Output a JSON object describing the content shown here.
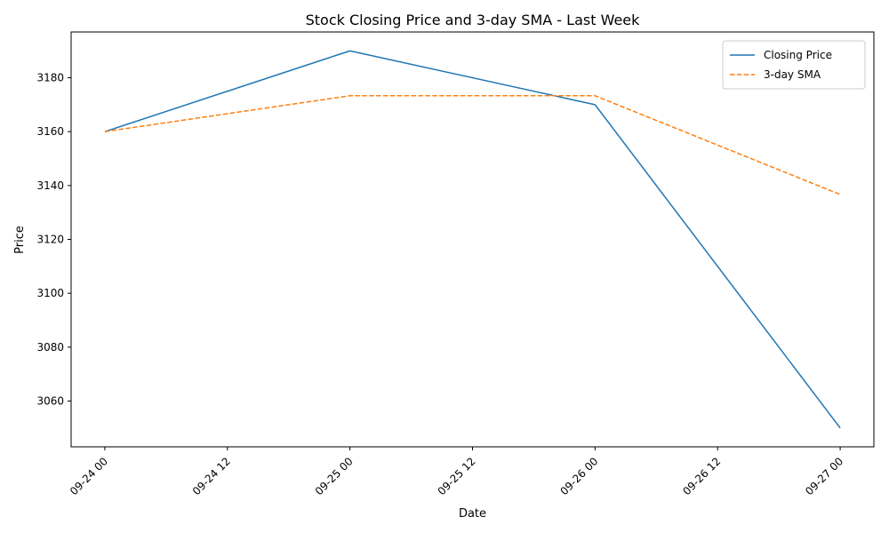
{
  "chart_data": {
    "type": "line",
    "title": "Stock Closing Price and 3-day SMA - Last Week",
    "xlabel": "Date",
    "ylabel": "Price",
    "x": [
      "2023-09-24 00:00",
      "2023-09-25 00:00",
      "2023-09-26 00:00",
      "2023-09-27 00:00"
    ],
    "x_ticks": [
      "09-24 00",
      "09-24 12",
      "09-25 00",
      "09-25 12",
      "09-26 00",
      "09-26 12",
      "09-27 00"
    ],
    "y_ticks": [
      3060,
      3080,
      3100,
      3120,
      3140,
      3160,
      3180
    ],
    "ylim": [
      3043,
      3197
    ],
    "xlim_hours": [
      -3.3,
      75.3
    ],
    "grid": false,
    "legend_position": "top-right",
    "series": [
      {
        "name": "Closing Price",
        "color": "#1f77b4",
        "dash": "solid",
        "values": [
          3160,
          3190,
          3170,
          3050
        ]
      },
      {
        "name": "3-day SMA",
        "color": "#ff7f0e",
        "dash": "dashed",
        "values": [
          3160,
          3173.33,
          3173.33,
          3136.67
        ]
      }
    ]
  }
}
